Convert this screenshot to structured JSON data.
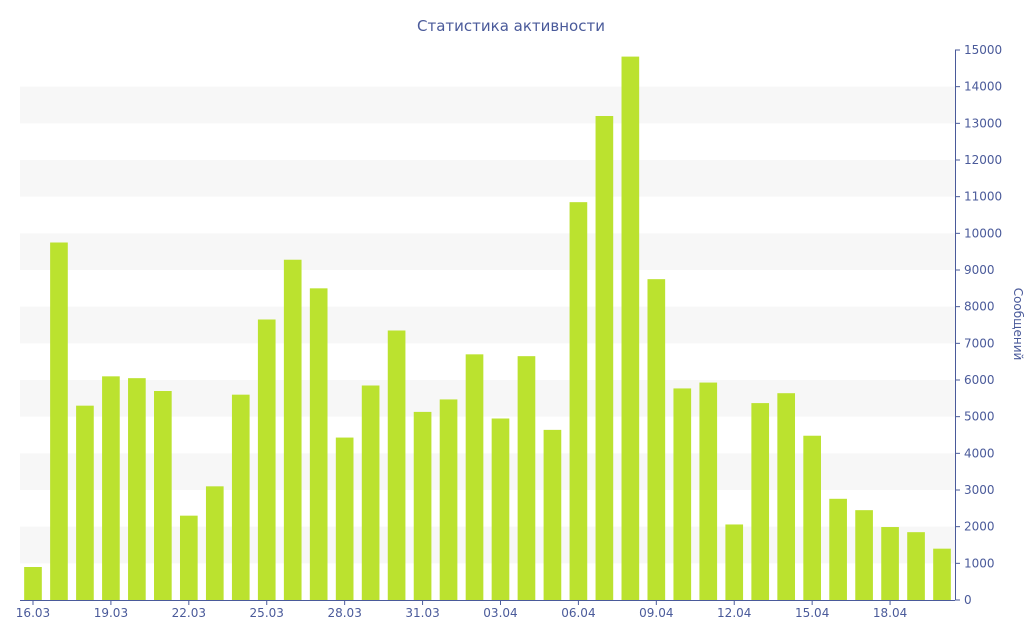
{
  "chart_data": {
    "type": "bar",
    "title": "Статистика активности",
    "ylabel": "Сообщений",
    "ylim": [
      0,
      15000
    ],
    "yticks": [
      0,
      1000,
      2000,
      3000,
      4000,
      5000,
      6000,
      7000,
      8000,
      9000,
      10000,
      11000,
      12000,
      13000,
      14000,
      15000
    ],
    "x_tick_labels": [
      "16.03",
      "19.03",
      "22.03",
      "25.03",
      "28.03",
      "31.03",
      "03.04",
      "06.04",
      "09.04",
      "12.04",
      "15.04",
      "18.04"
    ],
    "categories": [
      "16.03",
      "17.03",
      "18.03",
      "19.03",
      "20.03",
      "21.03",
      "22.03",
      "23.03",
      "24.03",
      "25.03",
      "26.03",
      "27.03",
      "28.03",
      "29.03",
      "30.03",
      "31.03",
      "01.04",
      "02.04",
      "03.04",
      "04.04",
      "05.04",
      "06.04",
      "07.04",
      "08.04",
      "09.04",
      "10.04",
      "11.04",
      "12.04",
      "13.04",
      "14.04",
      "15.04",
      "16.04",
      "17.04",
      "18.04",
      "19.04",
      "20.04"
    ],
    "values": [
      900,
      9750,
      5300,
      6100,
      6050,
      5700,
      2300,
      3100,
      5600,
      7650,
      9280,
      8500,
      4430,
      5850,
      7350,
      5130,
      5470,
      6700,
      4950,
      6650,
      4640,
      10850,
      13200,
      14820,
      8750,
      5770,
      5930,
      2060,
      5370,
      5640,
      4480,
      2760,
      2450,
      1990,
      1850,
      1400
    ],
    "colors": {
      "bar": "#bbe22f",
      "band": "#f7f7f7",
      "axis": "#4a5a9a",
      "title": "#4a5a9a"
    },
    "grid": "alternating-bands"
  }
}
